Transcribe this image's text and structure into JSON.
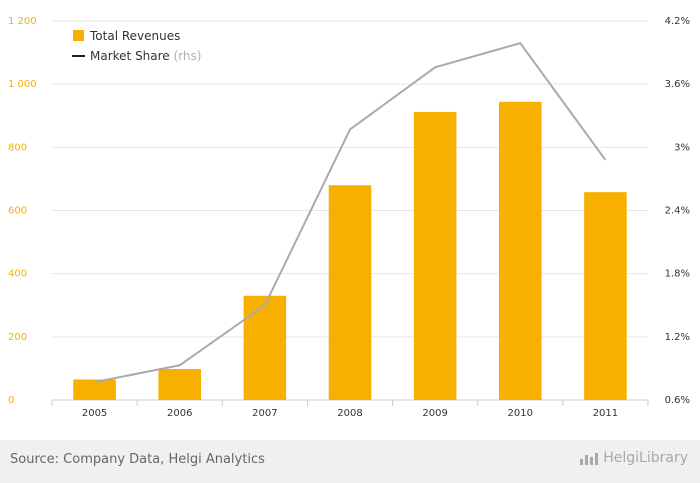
{
  "chart_data": {
    "type": "bar",
    "categories": [
      "2005",
      "2006",
      "2007",
      "2008",
      "2009",
      "2010",
      "2011"
    ],
    "series": [
      {
        "name": "Total Revenues",
        "type": "bar",
        "axis": "left",
        "color": "#f7b000",
        "values": [
          65,
          98,
          330,
          680,
          912,
          944,
          658
        ]
      },
      {
        "name": "Market Share",
        "name_suffix": "(rhs)",
        "type": "line",
        "axis": "right",
        "color": "#aaaaaa",
        "values": [
          0.77,
          0.93,
          1.5,
          3.17,
          3.76,
          3.99,
          2.88
        ]
      }
    ],
    "ylim": [
      0,
      1200
    ],
    "yticks": [
      "0",
      "200",
      "400",
      "600",
      "800",
      "1 000",
      "1 200"
    ],
    "y2lim": [
      0.6,
      4.2
    ],
    "y2ticks": [
      "0.6%",
      "1.2%",
      "1.8%",
      "2.4%",
      "3%",
      "3.6%",
      "4.2%"
    ],
    "left_axis_color": "#f7b000",
    "grid": true,
    "legend_position": "top-left"
  },
  "footer": {
    "source": "Source: Company Data, Helgi Analytics",
    "brand": "HelgiLibrary",
    "brand_icon": "helgi-logo-icon"
  }
}
